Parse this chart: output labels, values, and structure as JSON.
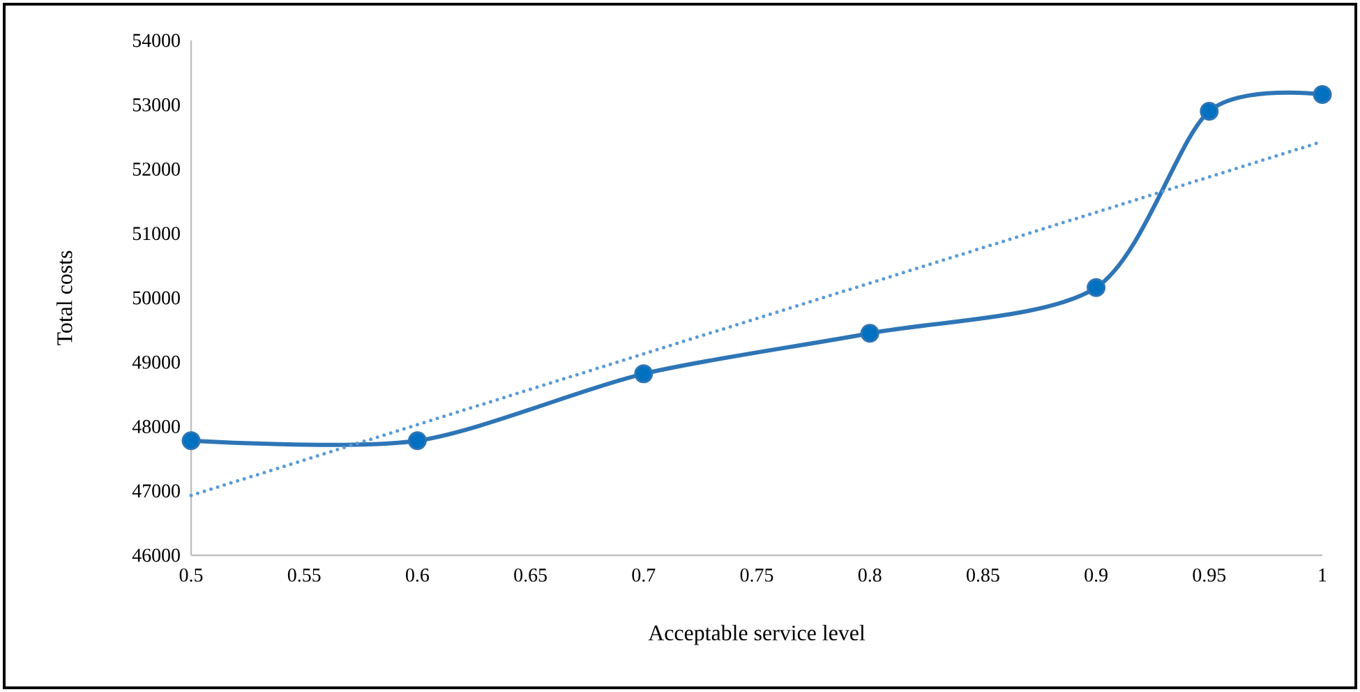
{
  "chart_data": {
    "type": "line",
    "xlabel": "Acceptable service level",
    "ylabel": "Total costs",
    "xlim": [
      0.5,
      1
    ],
    "xticks": [
      0.5,
      0.55,
      0.6,
      0.65,
      0.7,
      0.75,
      0.8,
      0.85,
      0.9,
      0.95,
      1
    ],
    "ylim": [
      46000,
      54000
    ],
    "yticks": [
      46000,
      47000,
      48000,
      49000,
      50000,
      51000,
      52000,
      53000,
      54000
    ],
    "series": [
      {
        "color": "#2e75b6",
        "marker": "circle",
        "line_style": "solid",
        "x": [
          0.5,
          0.6,
          0.7,
          0.8,
          0.9,
          0.95,
          1
        ],
        "values": [
          47780,
          47780,
          48820,
          49450,
          50160,
          52900,
          53160
        ]
      },
      {
        "color": "#5b9bd5",
        "marker": "none",
        "line_style": "dotted",
        "x": [
          0.5,
          1
        ],
        "values": [
          46930,
          52430
        ]
      }
    ]
  }
}
